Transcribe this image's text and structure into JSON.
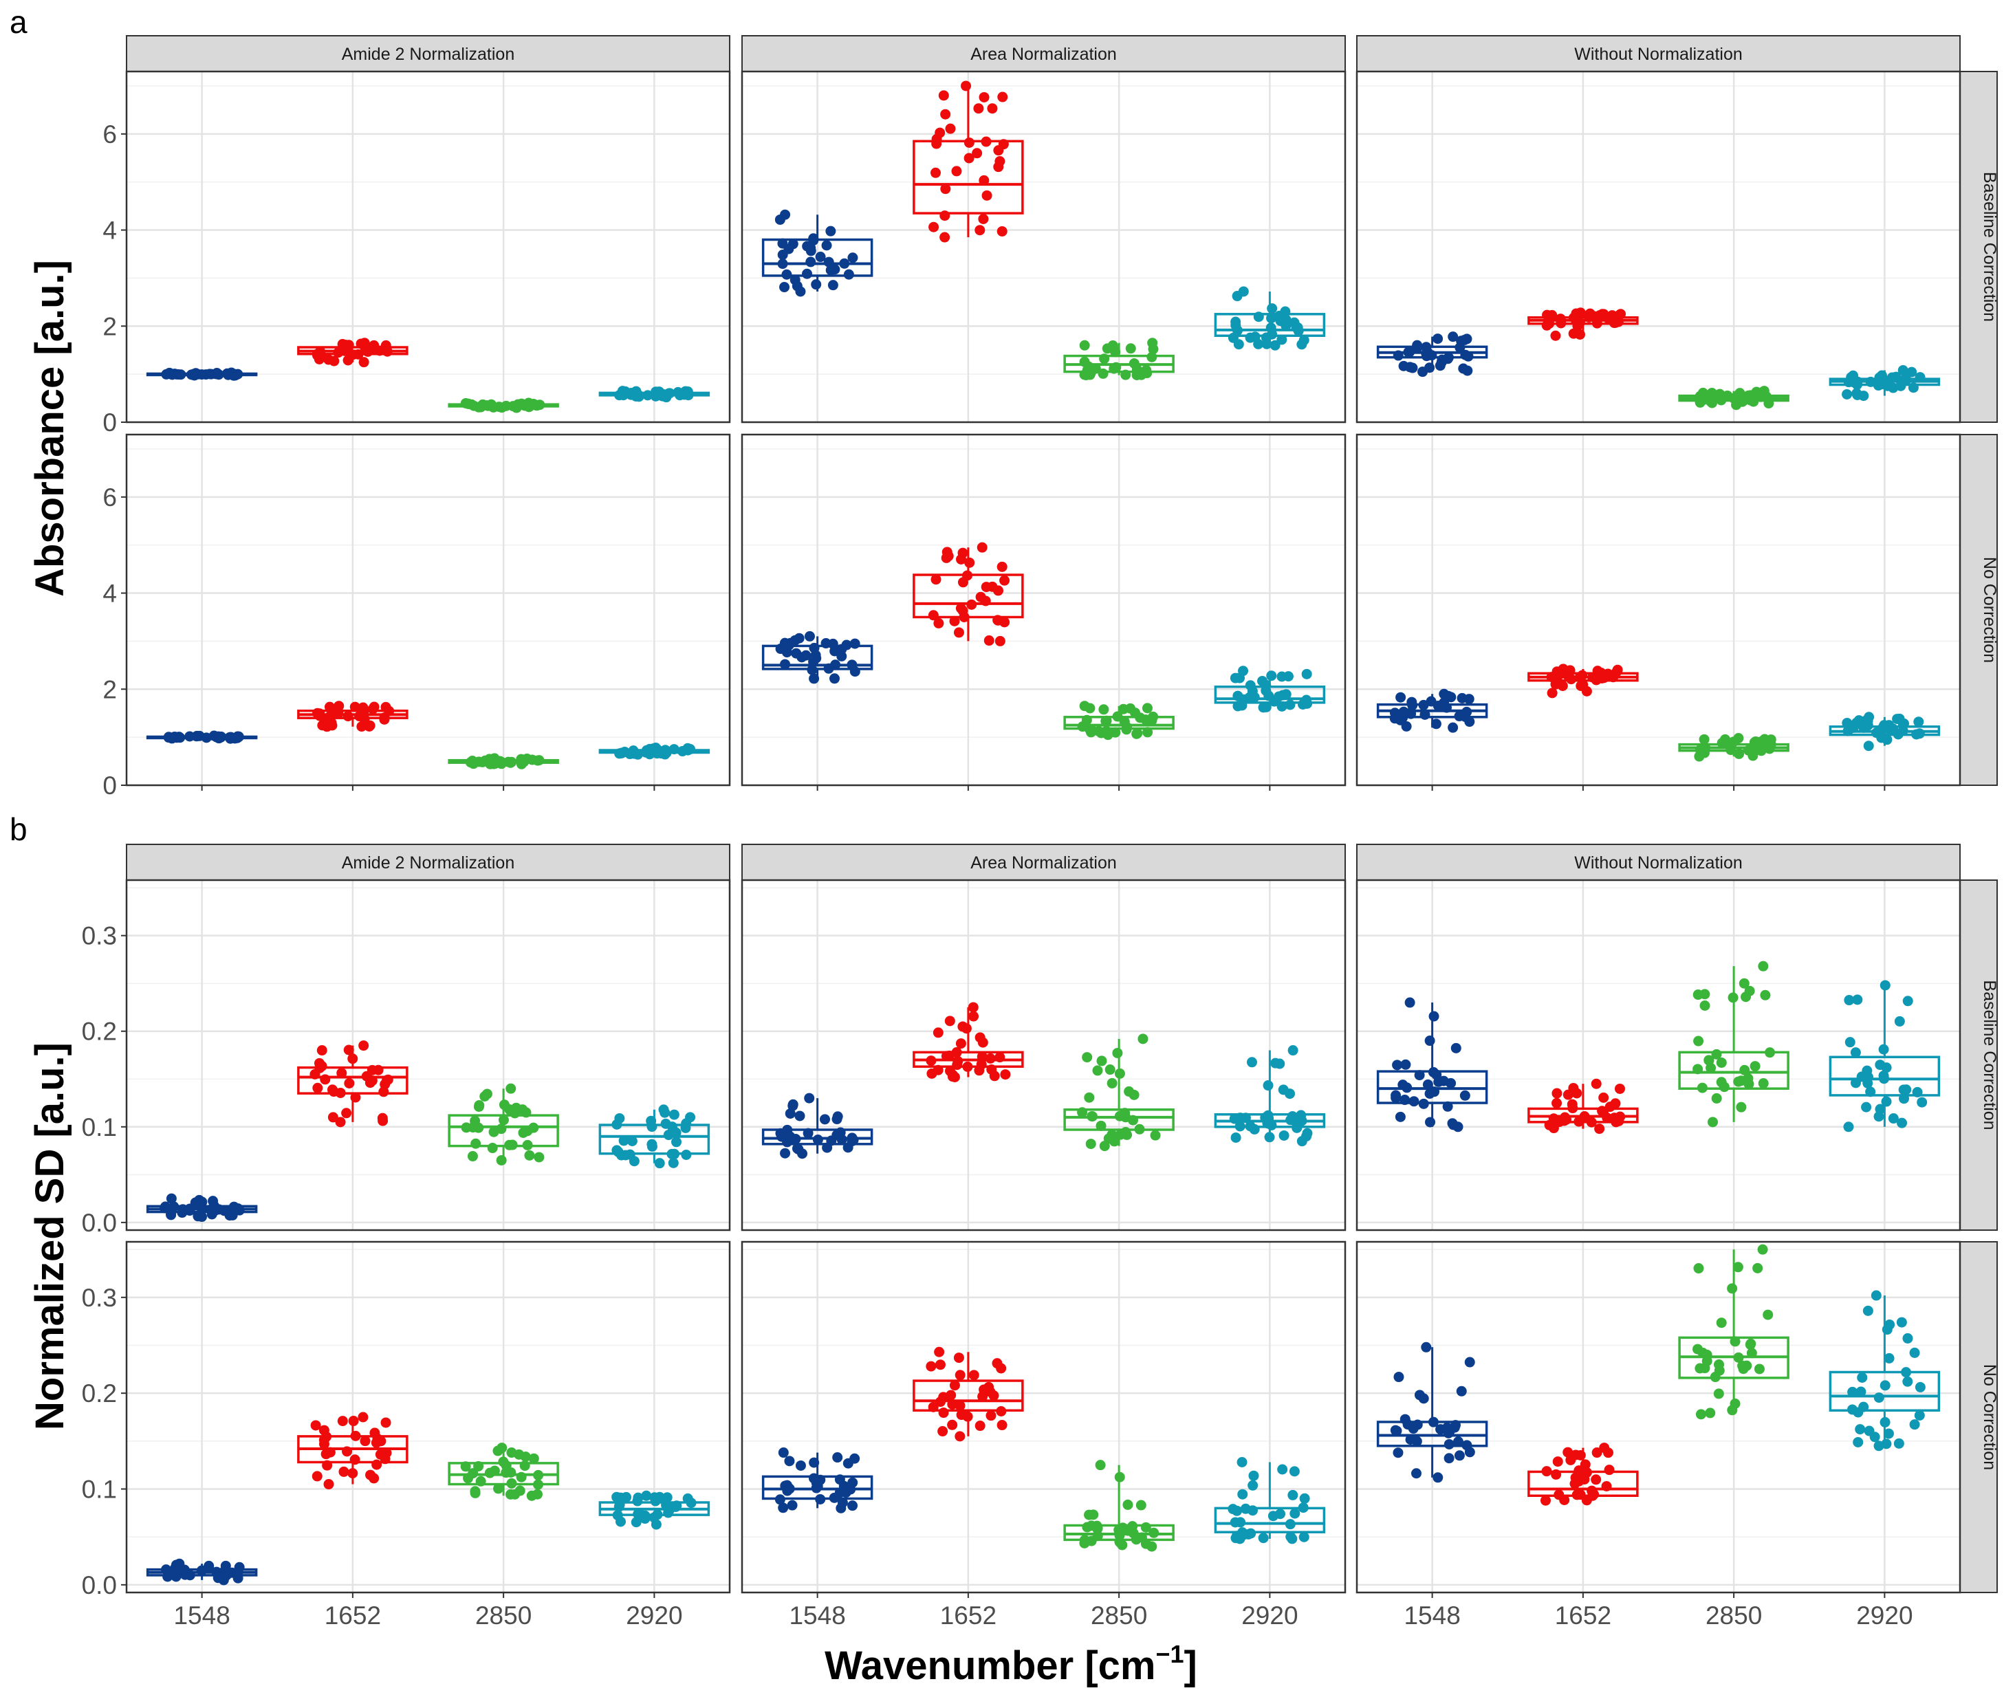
{
  "figure": {
    "panel_letters": [
      "a",
      "b"
    ],
    "x_title": "Wavenumber [cm",
    "x_title_sup": "−1",
    "x_title_close": "]"
  },
  "colors": {
    "1548": "#0b3d8c",
    "1652": "#ee0b0b",
    "2850": "#3ab53a",
    "2920": "#0e98b4"
  },
  "chart_data": [
    {
      "id": "a",
      "type": "box",
      "ylabel": "Absorbance [a.u.]",
      "xlabel": "Wavenumber [cm−1]",
      "ylim": [
        0,
        7.3
      ],
      "yticks": [
        0,
        2,
        4,
        6
      ],
      "ytick_labels": [
        "0",
        "2",
        "4",
        "6"
      ],
      "col_strips": [
        "Amide 2 Normalization",
        "Area Normalization",
        "Without Normalization"
      ],
      "row_strips": [
        "Baseline Correction",
        "No Correction"
      ],
      "categories": [
        "1548",
        "1652",
        "2850",
        "2920"
      ],
      "panels": [
        [
          {
            "boxes": [
              {
                "q1": 0.99,
                "med": 1.0,
                "q3": 1.01,
                "lo": 0.97,
                "hi": 1.03
              },
              {
                "q1": 1.42,
                "med": 1.48,
                "q3": 1.56,
                "lo": 1.25,
                "hi": 1.65
              },
              {
                "q1": 0.33,
                "med": 0.35,
                "q3": 0.37,
                "lo": 0.3,
                "hi": 0.4
              },
              {
                "q1": 0.56,
                "med": 0.58,
                "q3": 0.61,
                "lo": 0.52,
                "hi": 0.65
              }
            ]
          },
          {
            "boxes": [
              {
                "q1": 3.05,
                "med": 3.3,
                "q3": 3.8,
                "lo": 2.72,
                "hi": 4.32
              },
              {
                "q1": 4.35,
                "med": 4.95,
                "q3": 5.85,
                "lo": 3.85,
                "hi": 7.0
              },
              {
                "q1": 1.05,
                "med": 1.2,
                "q3": 1.38,
                "lo": 0.98,
                "hi": 1.65
              },
              {
                "q1": 1.8,
                "med": 1.92,
                "q3": 2.25,
                "lo": 1.6,
                "hi": 2.72
              }
            ]
          },
          {
            "boxes": [
              {
                "q1": 1.35,
                "med": 1.45,
                "q3": 1.57,
                "lo": 1.05,
                "hi": 1.78
              },
              {
                "q1": 2.05,
                "med": 2.12,
                "q3": 2.18,
                "lo": 1.8,
                "hi": 2.28
              },
              {
                "q1": 0.45,
                "med": 0.5,
                "q3": 0.55,
                "lo": 0.36,
                "hi": 0.65
              },
              {
                "q1": 0.78,
                "med": 0.85,
                "q3": 0.9,
                "lo": 0.55,
                "hi": 1.08
              }
            ]
          }
        ],
        [
          {
            "boxes": [
              {
                "q1": 0.99,
                "med": 1.0,
                "q3": 1.01,
                "lo": 0.97,
                "hi": 1.03
              },
              {
                "q1": 1.4,
                "med": 1.47,
                "q3": 1.55,
                "lo": 1.22,
                "hi": 1.65
              },
              {
                "q1": 0.47,
                "med": 0.49,
                "q3": 0.52,
                "lo": 0.44,
                "hi": 0.56
              },
              {
                "q1": 0.68,
                "med": 0.7,
                "q3": 0.73,
                "lo": 0.64,
                "hi": 0.78
              }
            ]
          },
          {
            "boxes": [
              {
                "q1": 2.42,
                "med": 2.5,
                "q3": 2.9,
                "lo": 2.22,
                "hi": 3.1
              },
              {
                "q1": 3.5,
                "med": 3.78,
                "q3": 4.38,
                "lo": 3.0,
                "hi": 4.95
              },
              {
                "q1": 1.18,
                "med": 1.25,
                "q3": 1.42,
                "lo": 1.05,
                "hi": 1.65
              },
              {
                "q1": 1.72,
                "med": 1.8,
                "q3": 2.05,
                "lo": 1.62,
                "hi": 2.38
              }
            ]
          },
          {
            "boxes": [
              {
                "q1": 1.42,
                "med": 1.55,
                "q3": 1.68,
                "lo": 1.2,
                "hi": 1.9
              },
              {
                "q1": 2.18,
                "med": 2.25,
                "q3": 2.33,
                "lo": 1.92,
                "hi": 2.42
              },
              {
                "q1": 0.72,
                "med": 0.78,
                "q3": 0.85,
                "lo": 0.6,
                "hi": 0.98
              },
              {
                "q1": 1.05,
                "med": 1.12,
                "q3": 1.22,
                "lo": 0.82,
                "hi": 1.42
              }
            ]
          }
        ]
      ]
    },
    {
      "id": "b",
      "type": "box",
      "ylabel": "Normalized SD [a.u.]",
      "xlabel": "Wavenumber [cm−1]",
      "ylim": [
        -0.008,
        0.358
      ],
      "yticks": [
        0.0,
        0.1,
        0.2,
        0.3
      ],
      "ytick_labels": [
        "0.0",
        "0.1",
        "0.2",
        "0.3"
      ],
      "col_strips": [
        "Amide 2 Normalization",
        "Area Normalization",
        "Without Normalization"
      ],
      "row_strips": [
        "Baseline Correction",
        "No Correction"
      ],
      "categories": [
        "1548",
        "1652",
        "2850",
        "2920"
      ],
      "panels": [
        [
          {
            "boxes": [
              {
                "q1": 0.011,
                "med": 0.014,
                "q3": 0.017,
                "lo": 0.006,
                "hi": 0.025
              },
              {
                "q1": 0.135,
                "med": 0.152,
                "q3": 0.162,
                "lo": 0.105,
                "hi": 0.185
              },
              {
                "q1": 0.08,
                "med": 0.1,
                "q3": 0.112,
                "lo": 0.065,
                "hi": 0.14
              },
              {
                "q1": 0.072,
                "med": 0.09,
                "q3": 0.102,
                "lo": 0.062,
                "hi": 0.118
              }
            ]
          },
          {
            "boxes": [
              {
                "q1": 0.082,
                "med": 0.088,
                "q3": 0.097,
                "lo": 0.072,
                "hi": 0.13
              },
              {
                "q1": 0.163,
                "med": 0.17,
                "q3": 0.178,
                "lo": 0.152,
                "hi": 0.225
              },
              {
                "q1": 0.097,
                "med": 0.11,
                "q3": 0.118,
                "lo": 0.08,
                "hi": 0.192
              },
              {
                "q1": 0.1,
                "med": 0.106,
                "q3": 0.113,
                "lo": 0.085,
                "hi": 0.18
              }
            ]
          },
          {
            "boxes": [
              {
                "q1": 0.125,
                "med": 0.14,
                "q3": 0.158,
                "lo": 0.1,
                "hi": 0.23
              },
              {
                "q1": 0.105,
                "med": 0.111,
                "q3": 0.119,
                "lo": 0.098,
                "hi": 0.145
              },
              {
                "q1": 0.14,
                "med": 0.157,
                "q3": 0.178,
                "lo": 0.105,
                "hi": 0.268
              },
              {
                "q1": 0.133,
                "med": 0.15,
                "q3": 0.173,
                "lo": 0.1,
                "hi": 0.248
              }
            ]
          }
        ],
        [
          {
            "boxes": [
              {
                "q1": 0.01,
                "med": 0.013,
                "q3": 0.016,
                "lo": 0.005,
                "hi": 0.022
              },
              {
                "q1": 0.128,
                "med": 0.142,
                "q3": 0.155,
                "lo": 0.105,
                "hi": 0.175
              },
              {
                "q1": 0.105,
                "med": 0.115,
                "q3": 0.127,
                "lo": 0.093,
                "hi": 0.143
              },
              {
                "q1": 0.073,
                "med": 0.079,
                "q3": 0.086,
                "lo": 0.063,
                "hi": 0.093
              }
            ]
          },
          {
            "boxes": [
              {
                "q1": 0.09,
                "med": 0.1,
                "q3": 0.113,
                "lo": 0.08,
                "hi": 0.138
              },
              {
                "q1": 0.182,
                "med": 0.192,
                "q3": 0.213,
                "lo": 0.155,
                "hi": 0.243
              },
              {
                "q1": 0.047,
                "med": 0.053,
                "q3": 0.062,
                "lo": 0.04,
                "hi": 0.125
              },
              {
                "q1": 0.055,
                "med": 0.064,
                "q3": 0.08,
                "lo": 0.048,
                "hi": 0.128
              }
            ]
          },
          {
            "boxes": [
              {
                "q1": 0.145,
                "med": 0.156,
                "q3": 0.17,
                "lo": 0.112,
                "hi": 0.248
              },
              {
                "q1": 0.093,
                "med": 0.1,
                "q3": 0.118,
                "lo": 0.088,
                "hi": 0.143
              },
              {
                "q1": 0.216,
                "med": 0.238,
                "q3": 0.258,
                "lo": 0.178,
                "hi": 0.35
              },
              {
                "q1": 0.182,
                "med": 0.197,
                "q3": 0.222,
                "lo": 0.145,
                "hi": 0.302
              }
            ]
          }
        ]
      ]
    }
  ]
}
